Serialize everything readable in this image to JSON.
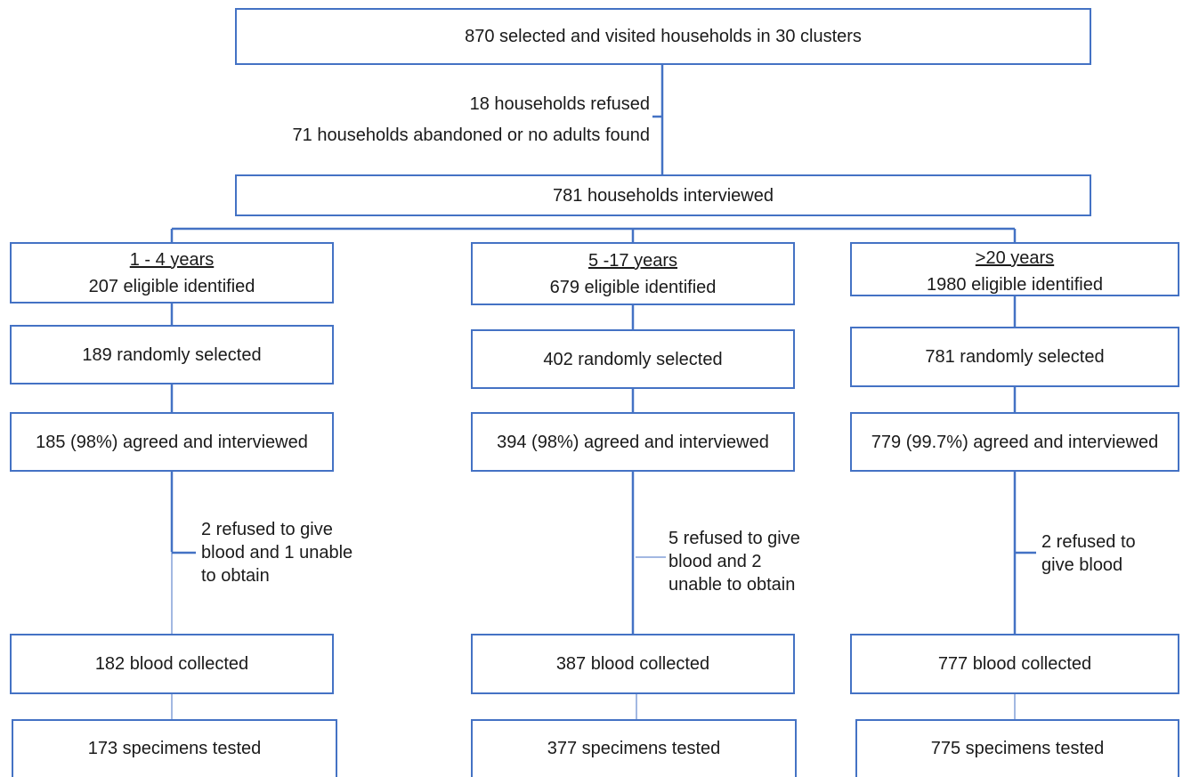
{
  "top": {
    "visited": "870 selected and visited households in 30 clusters",
    "refused": "18 households refused",
    "abandoned": "71 households abandoned or no adults found",
    "interviewed": "781 households interviewed"
  },
  "groups": [
    {
      "age": "1 - 4 years",
      "eligible": "207 eligible identified",
      "selected": "189 randomly selected",
      "agreed": "185 (98%) agreed and interviewed",
      "excluded": [
        "2 refused to give",
        "blood  and 1 unable",
        "to obtain"
      ],
      "collected": "182 blood collected",
      "tested": "173 specimens tested"
    },
    {
      "age": "5 -17 years",
      "eligible": "679 eligible identified",
      "selected": "402 randomly selected",
      "agreed": "394 (98%) agreed and interviewed",
      "excluded": [
        "5 refused to give",
        "blood and 2",
        "unable to obtain"
      ],
      "collected": "387 blood collected",
      "tested": "377 specimens tested"
    },
    {
      "age": ">20 years",
      "eligible": "1980 eligible identified",
      "selected": "781 randomly selected",
      "agreed": "779 (99.7%) agreed and interviewed",
      "excluded": [
        "2 refused to",
        "give blood"
      ],
      "collected": "777 blood collected",
      "tested": "775 specimens tested"
    }
  ],
  "colors": {
    "line": "#4472c4",
    "text": "#1a1a1a"
  }
}
